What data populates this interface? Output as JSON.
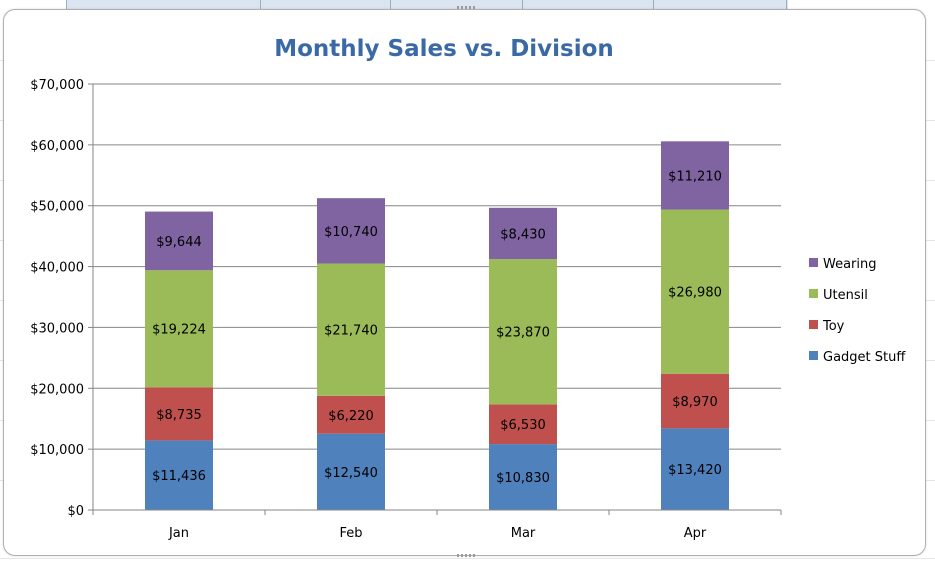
{
  "chart_data": {
    "type": "bar",
    "stacked": true,
    "title": "Monthly Sales vs. Division",
    "categories": [
      "Jan",
      "Feb",
      "Mar",
      "Apr"
    ],
    "series": [
      {
        "name": "Gadget Stuff",
        "color": "#4f81bd",
        "values": [
          11436,
          12540,
          10830,
          13420
        ],
        "labels": [
          "$11,436",
          "$12,540",
          "$10,830",
          "$13,420"
        ]
      },
      {
        "name": "Toy",
        "color": "#c0504d",
        "values": [
          8735,
          6220,
          6530,
          8970
        ],
        "labels": [
          "$8,735",
          "$6,220",
          "$6,530",
          "$8,970"
        ]
      },
      {
        "name": "Utensil",
        "color": "#9bbb59",
        "values": [
          19224,
          21740,
          23870,
          26980
        ],
        "labels": [
          "$19,224",
          "$21,740",
          "$23,870",
          "$26,980"
        ]
      },
      {
        "name": "Wearing",
        "color": "#8064a2",
        "values": [
          9644,
          10740,
          8430,
          11210
        ],
        "labels": [
          "$9,644",
          "$10,740",
          "$8,430",
          "$11,210"
        ]
      }
    ],
    "ylim": [
      0,
      70000
    ],
    "yticks": [
      0,
      10000,
      20000,
      30000,
      40000,
      50000,
      60000,
      70000
    ],
    "ytick_labels": [
      "$0",
      "$10,000",
      "$20,000",
      "$30,000",
      "$40,000",
      "$50,000",
      "$60,000",
      "$70,000"
    ],
    "grid": true,
    "legend_position": "right",
    "legend_order": [
      "Wearing",
      "Utensil",
      "Toy",
      "Gadget Stuff"
    ],
    "title_color": "#3a6aa5"
  }
}
